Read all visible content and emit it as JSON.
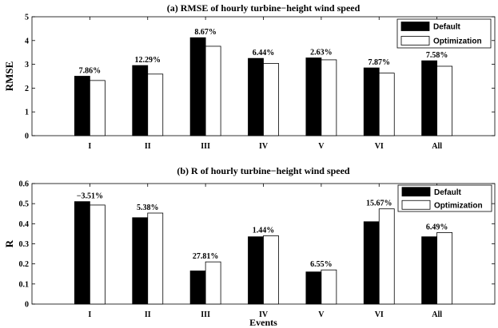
{
  "chart_data": [
    {
      "type": "bar",
      "title": "(a) RMSE of hourly turbine−height wind speed",
      "ylabel": "RMSE",
      "xlabel": "",
      "categories": [
        "I",
        "II",
        "III",
        "IV",
        "V",
        "VI",
        "All"
      ],
      "series": [
        {
          "name": "Default",
          "values": [
            2.5,
            2.95,
            4.12,
            3.25,
            3.27,
            2.85,
            3.15
          ],
          "color": "#000000"
        },
        {
          "name": "Optimization",
          "values": [
            2.32,
            2.59,
            3.76,
            3.04,
            3.19,
            2.63,
            2.92
          ],
          "color": "#ffffff"
        }
      ],
      "labels": [
        "7.86%",
        "12.29%",
        "8.67%",
        "6.44%",
        "2.63%",
        "7.87%",
        "7.58%"
      ],
      "ylim": [
        0,
        5
      ],
      "yticks": [
        "0",
        "1",
        "2",
        "3",
        "4",
        "5"
      ],
      "legend": "top-right",
      "grid": false
    },
    {
      "type": "bar",
      "title": "(b) R of hourly turbine−height wind speed",
      "ylabel": "R",
      "xlabel": "Events",
      "categories": [
        "I",
        "II",
        "III",
        "IV",
        "V",
        "VI",
        "All"
      ],
      "series": [
        {
          "name": "Default",
          "values": [
            0.51,
            0.43,
            0.165,
            0.335,
            0.16,
            0.41,
            0.335
          ],
          "color": "#000000"
        },
        {
          "name": "Optimization",
          "values": [
            0.493,
            0.453,
            0.21,
            0.34,
            0.17,
            0.474,
            0.356
          ],
          "color": "#ffffff"
        }
      ],
      "labels": [
        "−3.51%",
        "5.38%",
        "27.81%",
        "1.44%",
        "6.55%",
        "15.67%",
        "6.49%"
      ],
      "ylim": [
        0,
        0.6
      ],
      "yticks": [
        "0",
        "0.1",
        "0.2",
        "0.3",
        "0.4",
        "0.5",
        "0.6"
      ],
      "legend": "top-right",
      "grid": false
    }
  ]
}
